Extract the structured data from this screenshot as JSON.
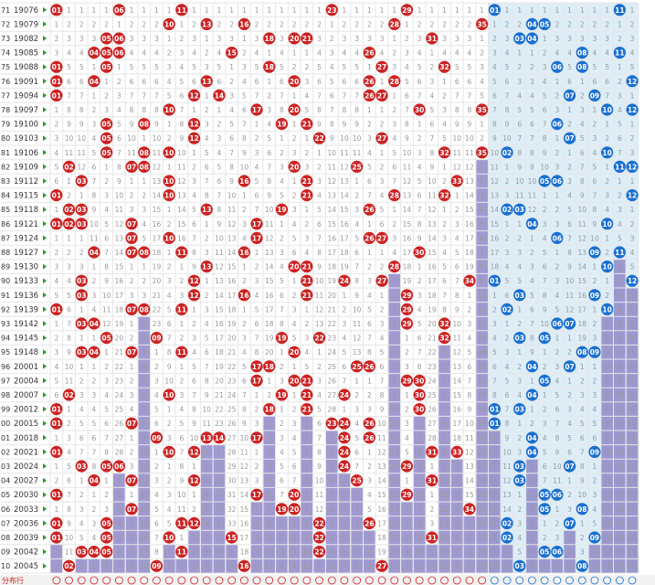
{
  "colors": {
    "red_ball": "#cc2222",
    "blue_ball": "#1a6fd0",
    "miss_bar": "#8f88c8",
    "blue_zone_bg": "#ddeef8",
    "grid_line": "#e6e6e6",
    "issue_text": "#333333",
    "miss_text": "#999999"
  },
  "chart_data": {
    "type": "table",
    "red_columns": 35,
    "blue_columns": 12,
    "rows": [
      {
        "no": "71",
        "issue": "19076",
        "red": [
          1,
          6,
          11,
          23,
          29
        ],
        "blue": [
          1,
          11
        ]
      },
      {
        "no": "72",
        "issue": "19079",
        "red": [
          10,
          13,
          16,
          28,
          35
        ],
        "blue": [
          4,
          5
        ]
      },
      {
        "no": "73",
        "issue": "19082",
        "red": [
          5,
          6,
          18,
          20,
          21,
          31
        ],
        "blue": [
          3,
          4
        ]
      },
      {
        "no": "74",
        "issue": "19085",
        "red": [
          4,
          5,
          6,
          15,
          26
        ],
        "blue": [
          8,
          11
        ]
      },
      {
        "no": "75",
        "issue": "19088",
        "red": [
          1,
          5,
          18,
          27,
          32
        ],
        "blue": [
          6,
          8
        ]
      },
      {
        "no": "76",
        "issue": "19091",
        "red": [
          1,
          4,
          13,
          20,
          26,
          28
        ],
        "blue": [
          12
        ]
      },
      {
        "no": "77",
        "issue": "19094",
        "red": [
          1,
          12,
          14,
          26,
          27
        ],
        "blue": [
          7,
          9
        ]
      },
      {
        "no": "78",
        "issue": "19097",
        "red": [
          10,
          17,
          20,
          30,
          35
        ],
        "blue": [
          10,
          12
        ]
      },
      {
        "no": "79",
        "issue": "19100",
        "red": [
          5,
          8,
          12,
          19,
          21
        ],
        "blue": [
          6
        ]
      },
      {
        "no": "80",
        "issue": "19103",
        "red": [
          5,
          12,
          22,
          27
        ],
        "blue": [
          7
        ]
      },
      {
        "no": "81",
        "issue": "19106",
        "red": [
          5,
          8,
          10,
          32,
          35
        ],
        "blue": [
          2,
          10
        ]
      },
      {
        "no": "82",
        "issue": "19109",
        "red": [
          2,
          7,
          8,
          20,
          25
        ],
        "blue": [
          11,
          12
        ]
      },
      {
        "no": "83",
        "issue": "19112",
        "red": [
          3,
          10,
          16,
          21,
          33
        ],
        "blue": [
          5,
          6
        ]
      },
      {
        "no": "84",
        "issue": "19115",
        "red": [
          1,
          10,
          21,
          28,
          32
        ],
        "blue": [
          12
        ]
      },
      {
        "no": "85",
        "issue": "19118",
        "red": [
          2,
          3,
          13,
          19,
          26
        ],
        "blue": [
          2,
          3
        ]
      },
      {
        "no": "86",
        "issue": "19121",
        "red": [
          1,
          2,
          3,
          7,
          17
        ],
        "blue": [
          4,
          10
        ]
      },
      {
        "no": "87",
        "issue": "19124",
        "red": [
          7,
          10,
          17,
          26,
          27
        ],
        "blue": [
          6
        ]
      },
      {
        "no": "88",
        "issue": "19127",
        "red": [
          4,
          7,
          8,
          11,
          16,
          30
        ],
        "blue": [
          9,
          11
        ]
      },
      {
        "no": "89",
        "issue": "19130",
        "red": [
          13,
          20,
          21,
          28
        ],
        "blue": [
          10
        ]
      },
      {
        "no": "90",
        "issue": "19133",
        "red": [
          3,
          12,
          21,
          24,
          27,
          34
        ],
        "blue": [
          1,
          12
        ]
      },
      {
        "no": "91",
        "issue": "19136",
        "red": [
          3,
          12,
          16,
          21,
          29
        ],
        "blue": [
          3,
          9
        ]
      },
      {
        "no": "92",
        "issue": "19139",
        "red": [
          1,
          7,
          8,
          11,
          29
        ],
        "blue": [
          2,
          10
        ]
      },
      {
        "no": "93",
        "issue": "19142",
        "red": [
          3,
          4,
          29,
          32
        ],
        "blue": [
          6,
          7
        ]
      },
      {
        "no": "94",
        "issue": "19145",
        "red": [
          5,
          9,
          19,
          22,
          32
        ],
        "blue": [
          3,
          5
        ]
      },
      {
        "no": "95",
        "issue": "19148",
        "red": [
          3,
          4,
          7,
          11,
          20
        ],
        "blue": [
          8,
          9
        ]
      },
      {
        "no": "96",
        "issue": "20001",
        "red": [
          17,
          18,
          25,
          26
        ],
        "blue": [
          4,
          7
        ]
      },
      {
        "no": "97",
        "issue": "20004",
        "red": [
          17,
          20,
          21,
          29,
          30
        ],
        "blue": [
          5
        ]
      },
      {
        "no": "98",
        "issue": "20007",
        "red": [
          2,
          10,
          19,
          21,
          24,
          30
        ],
        "blue": [
          4
        ]
      },
      {
        "no": "99",
        "issue": "20012",
        "red": [
          1,
          18,
          21,
          30
        ],
        "blue": [
          1,
          3
        ]
      },
      {
        "no": "00",
        "issue": "20015",
        "red": [
          1,
          7,
          23,
          24,
          26
        ],
        "blue": [
          1
        ]
      },
      {
        "no": "01",
        "issue": "20018",
        "red": [
          9,
          13,
          14,
          17,
          24,
          26
        ],
        "blue": [
          4
        ]
      },
      {
        "no": "02",
        "issue": "20021",
        "red": [
          1,
          10,
          12,
          24,
          31,
          33
        ],
        "blue": [
          4,
          9
        ]
      },
      {
        "no": "03",
        "issue": "20024",
        "red": [
          3,
          5,
          6,
          24,
          29
        ],
        "blue": [
          3,
          7
        ]
      },
      {
        "no": "04",
        "issue": "20027",
        "red": [
          4,
          7,
          12,
          25,
          31
        ],
        "blue": [
          3
        ]
      },
      {
        "no": "05",
        "issue": "20030",
        "red": [
          1,
          17,
          20,
          29
        ],
        "blue": [
          5,
          6
        ]
      },
      {
        "no": "06",
        "issue": "20033",
        "red": [
          7,
          19,
          20,
          34
        ],
        "blue": [
          5,
          8
        ]
      },
      {
        "no": "07",
        "issue": "20036",
        "red": [
          1,
          5,
          11,
          12,
          22,
          26
        ],
        "blue": [
          2,
          7
        ]
      },
      {
        "no": "08",
        "issue": "20039",
        "red": [
          1,
          5,
          10,
          15,
          22,
          31
        ],
        "blue": [
          2,
          9
        ]
      },
      {
        "no": "09",
        "issue": "20042",
        "red": [
          3,
          4,
          5,
          11,
          22
        ],
        "blue": [
          5,
          6
        ]
      },
      {
        "no": "10",
        "issue": "20045",
        "red": [
          2,
          9,
          16,
          27
        ],
        "blue": [
          3,
          8
        ]
      }
    ]
  },
  "footer": {
    "label": "分布行"
  }
}
